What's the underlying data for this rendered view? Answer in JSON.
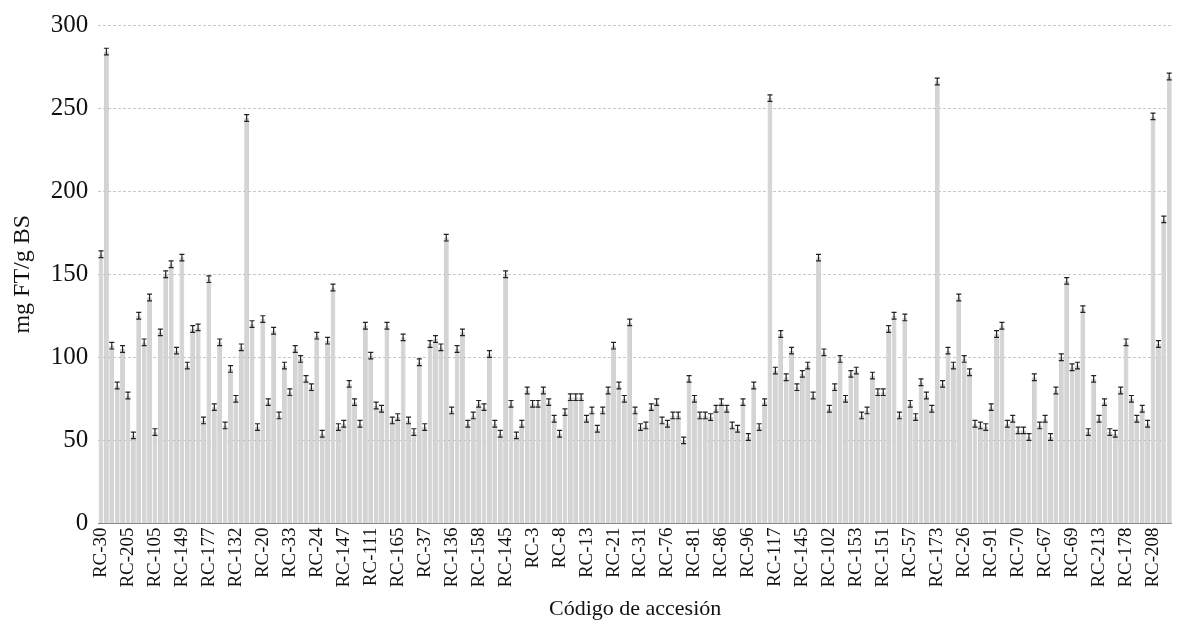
{
  "chart_data": {
    "type": "bar",
    "xlabel": "Código de accesión",
    "ylabel": "mg FT/g BS",
    "categories": [
      "RC-30",
      null,
      null,
      null,
      null,
      "RC-205",
      null,
      null,
      null,
      null,
      "RC-105",
      null,
      null,
      null,
      null,
      "RC-149",
      null,
      null,
      null,
      null,
      "RC-177",
      null,
      null,
      null,
      null,
      "RC-132",
      null,
      null,
      null,
      null,
      "RC-20",
      null,
      null,
      null,
      null,
      "RC-33",
      null,
      null,
      null,
      null,
      "RC-24",
      null,
      null,
      null,
      null,
      "RC-147",
      null,
      null,
      null,
      null,
      "RC-111",
      null,
      null,
      null,
      null,
      "RC-165",
      null,
      null,
      null,
      null,
      "RC-37",
      null,
      null,
      null,
      null,
      "RC-136",
      null,
      null,
      null,
      null,
      "RC-158",
      null,
      null,
      null,
      null,
      "RC-145",
      null,
      null,
      null,
      null,
      "RC-3",
      null,
      null,
      null,
      null,
      "RC-8",
      null,
      null,
      null,
      null,
      "RC-13",
      null,
      null,
      null,
      null,
      "RC-21",
      null,
      null,
      null,
      null,
      "RC-31",
      null,
      null,
      null,
      null,
      "RC-76",
      null,
      null,
      null,
      null,
      "RC-81",
      null,
      null,
      null,
      null,
      "RC-86",
      null,
      null,
      null,
      null,
      "RC-96",
      null,
      null,
      null,
      null,
      "RC-117",
      null,
      null,
      null,
      null,
      "RC-145",
      null,
      null,
      null,
      null,
      "RC-102",
      null,
      null,
      null,
      null,
      "RC-153",
      null,
      null,
      null,
      null,
      "RC-151",
      null,
      null,
      null,
      null,
      "RC-57",
      null,
      null,
      null,
      null,
      "RC-173",
      null,
      null,
      null,
      null,
      "RC-26",
      null,
      null,
      null,
      null,
      "RC-91",
      null,
      null,
      null,
      null,
      "RC-70",
      null,
      null,
      null,
      null,
      "RC-67",
      null,
      null,
      null,
      null,
      "RC-69",
      null,
      null,
      null,
      null,
      "RC-213",
      null,
      null,
      null,
      null,
      "RC-178",
      null,
      null,
      null,
      null,
      "RC-208",
      null,
      null,
      null
    ],
    "values": [
      162,
      284,
      107,
      83,
      105,
      77,
      53,
      125,
      109,
      136,
      55,
      115,
      150,
      156,
      104,
      160,
      95,
      117,
      118,
      62,
      147,
      70,
      109,
      59,
      93,
      75,
      106,
      244,
      120,
      58,
      123,
      73,
      116,
      65,
      95,
      79,
      105,
      99,
      87,
      82,
      113,
      54,
      110,
      142,
      58,
      60,
      84,
      73,
      60,
      119,
      101,
      71,
      69,
      119,
      62,
      64,
      112,
      62,
      55,
      97,
      58,
      108,
      111,
      106,
      172,
      68,
      105,
      115,
      60,
      65,
      72,
      70,
      102,
      60,
      54,
      150,
      72,
      53,
      60,
      80,
      72,
      72,
      80,
      73,
      63,
      54,
      67,
      76,
      76,
      76,
      63,
      68,
      57,
      68,
      80,
      107,
      83,
      75,
      121,
      68,
      58,
      59,
      70,
      73,
      62,
      60,
      65,
      65,
      50,
      87,
      75,
      65,
      65,
      64,
      69,
      73,
      69,
      59,
      57,
      73,
      52,
      83,
      58,
      73,
      256,
      92,
      114,
      88,
      104,
      82,
      90,
      95,
      77,
      160,
      103,
      69,
      82,
      99,
      75,
      90,
      92,
      65,
      68,
      89,
      79,
      79,
      117,
      125,
      65,
      124,
      72,
      64,
      85,
      77,
      69,
      266,
      84,
      104,
      95,
      136,
      99,
      91,
      60,
      59,
      58,
      70,
      114,
      119,
      60,
      63,
      56,
      56,
      52,
      88,
      59,
      63,
      52,
      80,
      100,
      146,
      94,
      95,
      129,
      55,
      87,
      63,
      73,
      55,
      54,
      80,
      109,
      75,
      63,
      69,
      60,
      245,
      108,
      183,
      269
    ],
    "errors": [
      2,
      2,
      2,
      2,
      2,
      2,
      2,
      2,
      2,
      2,
      2,
      2,
      2,
      2,
      2,
      2,
      2,
      2,
      2,
      2,
      2,
      2,
      2,
      2,
      2,
      2,
      2,
      2,
      2,
      2,
      2,
      2,
      2,
      2,
      2,
      2,
      2,
      2,
      2,
      2,
      2,
      2,
      2,
      2,
      2,
      2,
      2,
      2,
      2,
      2,
      2,
      2,
      2,
      2,
      2,
      2,
      2,
      2,
      2,
      2,
      2,
      2,
      2,
      2,
      2,
      2,
      2,
      2,
      2,
      2,
      2,
      2,
      2,
      2,
      2,
      2,
      2,
      2,
      2,
      2,
      2,
      2,
      2,
      2,
      2,
      2,
      2,
      2,
      2,
      2,
      2,
      2,
      2,
      2,
      2,
      2,
      2,
      2,
      2,
      2,
      2,
      2,
      2,
      2,
      2,
      2,
      2,
      2,
      2,
      2,
      2,
      2,
      2,
      2,
      2,
      2,
      2,
      2,
      2,
      2,
      2,
      2,
      2,
      2,
      2,
      2,
      2,
      2,
      2,
      2,
      2,
      2,
      2,
      2,
      2,
      2,
      2,
      2,
      2,
      2,
      2,
      2,
      2,
      2,
      2,
      2,
      2,
      2,
      2,
      2,
      2,
      2,
      2,
      2,
      2,
      2,
      2,
      2,
      2,
      2,
      2,
      2,
      2,
      2,
      2,
      2,
      2,
      2,
      2,
      2,
      2,
      2,
      2,
      2,
      2,
      2,
      2,
      2,
      2,
      2,
      2,
      2,
      2,
      2,
      2,
      2,
      2,
      2,
      2,
      2,
      2,
      2,
      2,
      2,
      2,
      2,
      2,
      2,
      2
    ],
    "color": "#d4d4d4",
    "ylim": [
      0,
      300
    ],
    "yticks": [
      0,
      50,
      100,
      150,
      200,
      250,
      300
    ],
    "grid": "y"
  }
}
